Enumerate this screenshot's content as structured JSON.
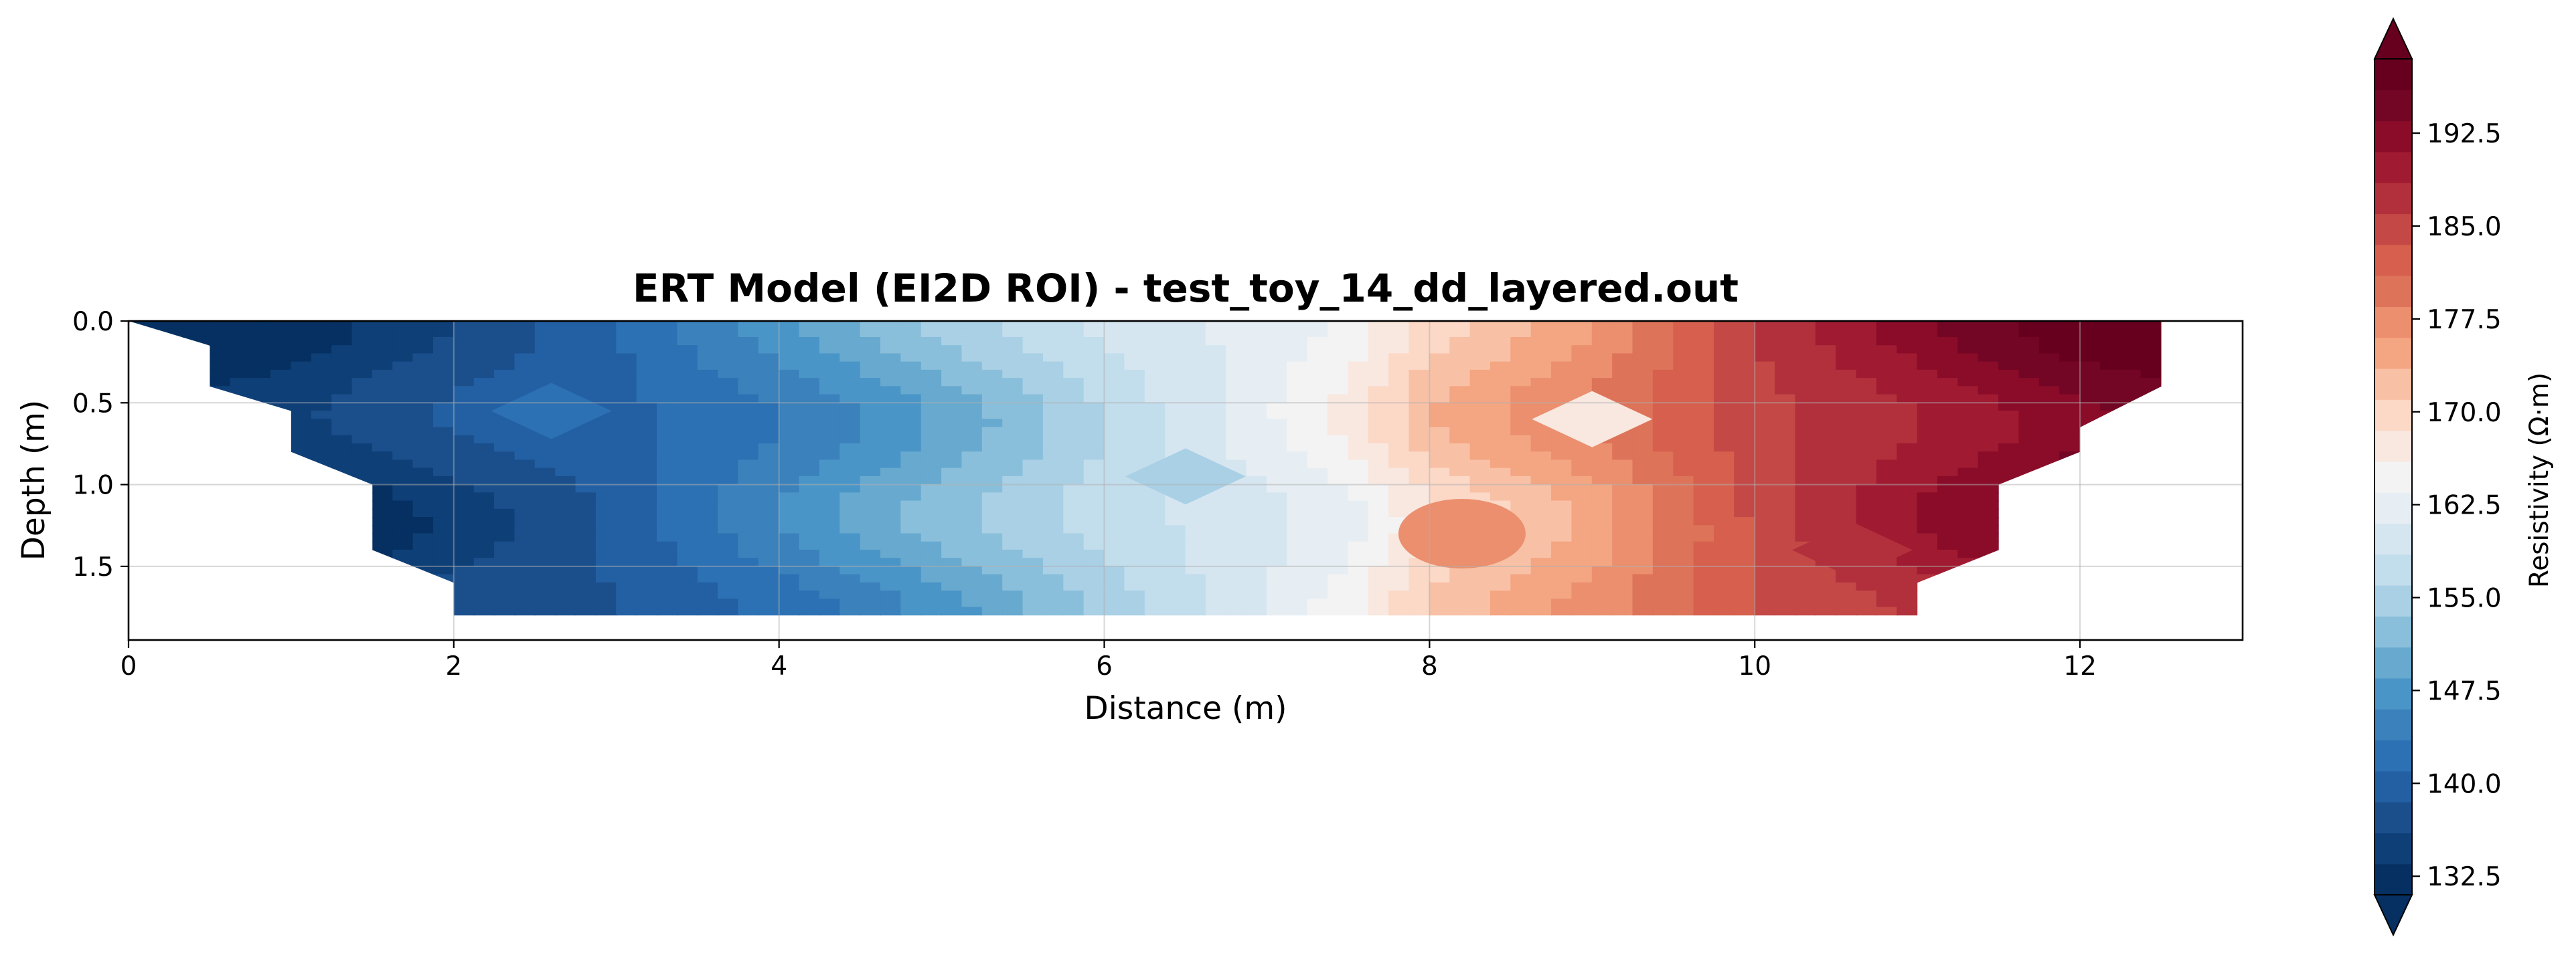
{
  "chart_data": {
    "type": "heatmap",
    "subtype": "filled-contour",
    "title": "ERT Model (EI2D ROI) - test_toy_14_dd_layered.out",
    "xlabel": "Distance (m)",
    "ylabel": "Depth (m)",
    "xlim": [
      0,
      13
    ],
    "ylim": [
      1.95,
      0
    ],
    "y_inverted": true,
    "grid": true,
    "x_ticks": [
      "0",
      "2",
      "4",
      "6",
      "8",
      "10",
      "12"
    ],
    "y_ticks": [
      "0.0",
      "0.5",
      "1.0",
      "1.5"
    ],
    "colormap": "RdBu_r",
    "colors": [
      "#053061",
      "#0f3f77",
      "#1a4f8c",
      "#2360a3",
      "#2c71b3",
      "#3b81bb",
      "#4a95c7",
      "#67a9cf",
      "#8abfdb",
      "#a9d0e5",
      "#c2ddec",
      "#d6e6f0",
      "#e6eef3",
      "#f3f3f3",
      "#f9e8e0",
      "#fcd8c6",
      "#f8c1a6",
      "#f4a582",
      "#eb8f6e",
      "#dd7359",
      "#d6604d",
      "#c44845",
      "#b2303c",
      "#a01a31",
      "#8a0c29",
      "#730624",
      "#67001f"
    ],
    "colorbar": {
      "label": "Resistivity (Ω·m)",
      "min": 131.0,
      "max": 198.5,
      "levels_step": 2.5,
      "extend": "both",
      "ticks": [
        132.5,
        140.0,
        147.5,
        155.0,
        162.5,
        170.0,
        177.5,
        185.0,
        192.5
      ],
      "tick_labels": [
        "132.5",
        "140.0",
        "147.5",
        "155.0",
        "162.5",
        "170.0",
        "177.5",
        "185.0",
        "192.5"
      ]
    },
    "x": [
      0,
      0.5,
      1,
      1.5,
      2,
      2.5,
      3,
      3.5,
      4,
      4.5,
      5,
      5.5,
      6,
      6.5,
      7,
      7.5,
      8,
      8.5,
      9,
      9.5,
      10,
      10.5,
      11,
      11.5,
      12,
      12.5
    ],
    "depth": [
      0,
      0.4,
      0.8,
      1.2,
      1.6,
      1.8
    ],
    "roi_top_boundary": [
      [
        0,
        0
      ],
      [
        12.5,
        0
      ]
    ],
    "roi_right_boundary": [
      [
        12.5,
        0
      ],
      [
        12.5,
        0.4
      ],
      [
        12,
        0.65
      ],
      [
        12,
        0.8
      ],
      [
        11.5,
        1.0
      ],
      [
        11.5,
        1.4
      ],
      [
        11,
        1.6
      ],
      [
        11,
        1.8
      ]
    ],
    "roi_left_boundary": [
      [
        0,
        0
      ],
      [
        0.5,
        0.15
      ],
      [
        0.5,
        0.4
      ],
      [
        1,
        0.55
      ],
      [
        1,
        0.8
      ],
      [
        1.5,
        1.0
      ],
      [
        1.5,
        1.4
      ],
      [
        2,
        1.6
      ],
      [
        2,
        1.8
      ]
    ],
    "roi_bottom": 1.8,
    "resistivity_profile": {
      "x": [
        0,
        1,
        2,
        3,
        4,
        5,
        6,
        7,
        7.5,
        8,
        9,
        10,
        11,
        12,
        12.5
      ],
      "value": [
        132,
        134,
        138,
        141,
        146,
        152,
        158,
        163,
        166,
        172,
        178,
        186,
        191,
        196,
        197
      ]
    },
    "annotations": [
      {
        "shape": "diamond",
        "cx": 2.6,
        "cy": 0.55,
        "value": 141
      },
      {
        "shape": "diamond",
        "cx": 6.5,
        "cy": 0.95,
        "value": 154
      },
      {
        "shape": "diamond",
        "cx": 9.0,
        "cy": 0.6,
        "value": 167
      },
      {
        "shape": "ellipse",
        "cx": 8.2,
        "cy": 1.3,
        "value": 177
      },
      {
        "shape": "diamond",
        "cx": 10.6,
        "cy": 1.4,
        "value": 186
      }
    ]
  }
}
